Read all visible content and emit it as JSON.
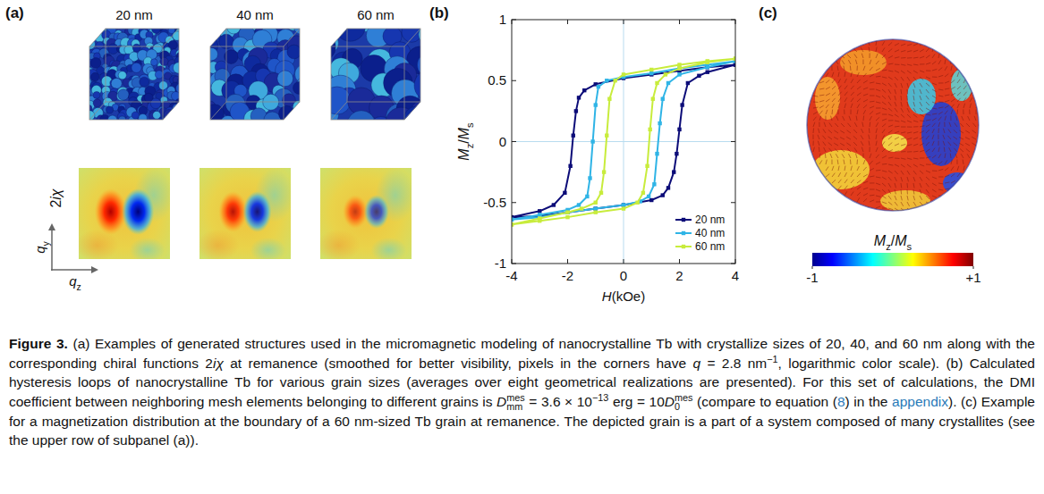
{
  "panel_a": {
    "label": "(a)",
    "sizes": [
      "20 nm",
      "40 nm",
      "60 nm"
    ],
    "map_label": [
      {
        "text": "2"
      },
      {
        "text": "iχ",
        "style": "italic"
      }
    ],
    "q_y_label": [
      {
        "text": "q",
        "style": "italic"
      },
      {
        "text": "y",
        "style": "sub"
      }
    ],
    "q_z_label": [
      {
        "text": "q",
        "style": "italic"
      },
      {
        "text": "z",
        "style": "sub"
      }
    ]
  },
  "chart_data": {
    "label": "(b)",
    "type": "line",
    "x_label": [
      {
        "text": "H",
        "style": "italic"
      },
      {
        "text": "(kOe)"
      }
    ],
    "y_label": [
      {
        "text": "M",
        "style": "italic"
      },
      {
        "text": "z",
        "style": "sub"
      },
      {
        "text": "/"
      },
      {
        "text": "M",
        "style": "italic"
      },
      {
        "text": "s",
        "style": "sub"
      }
    ],
    "xlim": [
      -4,
      4
    ],
    "ylim": [
      -1,
      1
    ],
    "xticks": [
      -4,
      -2,
      0,
      2,
      4
    ],
    "yticks": [
      -1,
      -0.5,
      0,
      0.5,
      1
    ],
    "grid": false,
    "legend": "lower right",
    "marker": "square",
    "series": [
      {
        "name": "20 nm",
        "color": "#0c0c78",
        "x": [
          4,
          3,
          2,
          1,
          0,
          -1,
          -1.4,
          -1.6,
          -1.7,
          -1.8,
          -1.9,
          -2.1,
          -2.5,
          -3,
          -4,
          -4,
          -3,
          -2,
          -1,
          0,
          1,
          1.4,
          1.6,
          1.8,
          1.9,
          2,
          2.1,
          2.3,
          2.7,
          3,
          4
        ],
        "values": [
          0.63,
          0.61,
          0.58,
          0.55,
          0.52,
          0.47,
          0.42,
          0.36,
          0.25,
          0.05,
          -0.2,
          -0.42,
          -0.52,
          -0.57,
          -0.62,
          -0.62,
          -0.61,
          -0.58,
          -0.55,
          -0.52,
          -0.48,
          -0.44,
          -0.38,
          -0.25,
          -0.1,
          0.1,
          0.3,
          0.48,
          0.54,
          0.57,
          0.63
        ]
      },
      {
        "name": "40 nm",
        "color": "#2fb4e6",
        "x": [
          4,
          3,
          2,
          1,
          0,
          -0.6,
          -0.9,
          -1,
          -1.1,
          -1.2,
          -1.3,
          -1.6,
          -2,
          -3,
          -4,
          -4,
          -3,
          -2,
          -1,
          0,
          0.6,
          0.9,
          1.1,
          1.2,
          1.3,
          1.4,
          1.6,
          2,
          3,
          4
        ],
        "values": [
          0.66,
          0.63,
          0.6,
          0.56,
          0.53,
          0.5,
          0.45,
          0.3,
          0,
          -0.3,
          -0.45,
          -0.52,
          -0.56,
          -0.6,
          -0.64,
          -0.64,
          -0.62,
          -0.58,
          -0.55,
          -0.52,
          -0.49,
          -0.45,
          -0.35,
          -0.1,
          0.15,
          0.35,
          0.48,
          0.55,
          0.61,
          0.66
        ]
      },
      {
        "name": "60 nm",
        "color": "#c8ec3c",
        "x": [
          4,
          3,
          2,
          1,
          0,
          -0.3,
          -0.5,
          -0.6,
          -0.7,
          -0.8,
          -1,
          -1.5,
          -2,
          -3,
          -4,
          -4,
          -3,
          -2,
          -1,
          0,
          0.5,
          0.7,
          0.85,
          0.95,
          1.05,
          1.2,
          1.5,
          2,
          3,
          4
        ],
        "values": [
          0.68,
          0.66,
          0.63,
          0.59,
          0.55,
          0.5,
          0.35,
          0.05,
          -0.25,
          -0.42,
          -0.5,
          -0.55,
          -0.58,
          -0.63,
          -0.68,
          -0.68,
          -0.65,
          -0.62,
          -0.58,
          -0.55,
          -0.5,
          -0.42,
          -0.2,
          0.1,
          0.35,
          0.48,
          0.55,
          0.6,
          0.65,
          0.68
        ]
      }
    ]
  },
  "panel_c": {
    "label": "(c)",
    "colorbar": {
      "label": [
        {
          "text": "M",
          "style": "italic"
        },
        {
          "text": "z",
          "style": "sub"
        },
        {
          "text": "/"
        },
        {
          "text": "M",
          "style": "italic"
        },
        {
          "text": "s",
          "style": "sub"
        }
      ],
      "range": [
        -1,
        1
      ],
      "ticks": [
        -1,
        {
          "value": 1,
          "label": "+1"
        }
      ]
    }
  },
  "caption": {
    "segments": [
      {
        "text": "Figure 3.",
        "style": "bold"
      },
      {
        "text": " (a) Examples of generated structures used in the micromagnetic modeling of nanocrystalline Tb with crystallize sizes of 20, 40, and 60 nm along with the corresponding chiral functions 2"
      },
      {
        "text": "iχ",
        "style": "italic"
      },
      {
        "text": " at remanence (smoothed for better visibility, pixels in the corners have "
      },
      {
        "text": "q",
        "style": "italic"
      },
      {
        "text": " = 2.8 nm"
      },
      {
        "text": "−1",
        "style": "sup"
      },
      {
        "text": ", logarithmic color scale). (b) Calculated hysteresis loops of nanocrystalline Tb for various grain sizes (averages over eight geometrical realizations are presented). For this set of calculations, the DMI coefficient between neighboring mesh elements belonging to different grains is "
      },
      {
        "text": "D",
        "style": "italic"
      },
      {
        "style": "subsup",
        "sup": "mes",
        "sub": "mm"
      },
      {
        "text": " = 3.6 × 10"
      },
      {
        "text": "−13",
        "style": "sup"
      },
      {
        "text": " erg = 10"
      },
      {
        "text": "D",
        "style": "italic"
      },
      {
        "style": "subsup",
        "sup": "mes",
        "sub": "0"
      },
      {
        "text": " (compare to equation ("
      },
      {
        "text": "8",
        "style": "link"
      },
      {
        "text": ") in the "
      },
      {
        "text": "appendix",
        "style": "link"
      },
      {
        "text": "). (c) Example for a magnetization distribution at the boundary of a 60 nm-sized Tb grain at remanence. The depicted grain is a part of a system composed of many crystallites (see the upper row of subpanel (a))."
      }
    ]
  }
}
